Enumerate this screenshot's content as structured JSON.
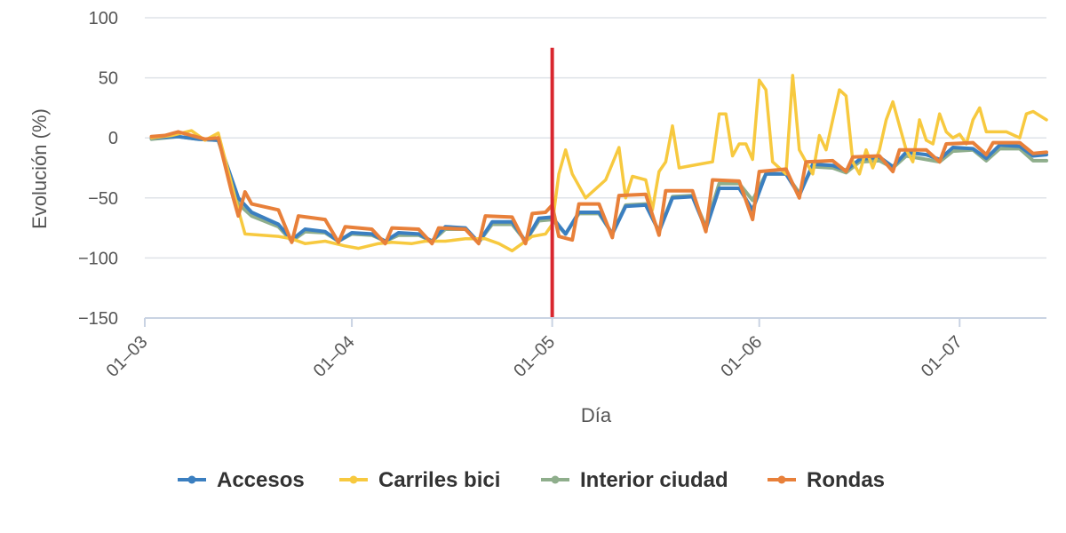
{
  "chart_data": {
    "type": "line",
    "title": "",
    "xlabel": "Día",
    "ylabel": "Evolución (%)",
    "ylim": [
      -150,
      100
    ],
    "yticks": [
      100,
      50,
      0,
      -50,
      -100,
      -150
    ],
    "ytick_labels": [
      "100",
      "50",
      "0",
      "−50",
      "−100",
      "−150"
    ],
    "xlim": [
      "2020-03-01",
      "2020-07-14"
    ],
    "xticks": [
      "2020-03-01",
      "2020-04-01",
      "2020-05-01",
      "2020-06-01",
      "2020-07-01"
    ],
    "xtick_labels": [
      "01–03",
      "01–04",
      "01–05",
      "01–06",
      "01–07"
    ],
    "grid": "horizontal",
    "legend_position": "bottom",
    "marker_line": {
      "x": "2020-05-01",
      "y_from": -150,
      "y_to": 75,
      "color": "#d9272e"
    },
    "series": [
      {
        "name": "Accesos",
        "color": "#3b7fc0",
        "points": [
          [
            "2020-03-02",
            0
          ],
          [
            "2020-03-06",
            1
          ],
          [
            "2020-03-09",
            -1
          ],
          [
            "2020-03-12",
            -2
          ],
          [
            "2020-03-15",
            -50
          ],
          [
            "2020-03-17",
            -62
          ],
          [
            "2020-03-21",
            -72
          ],
          [
            "2020-03-23",
            -85
          ],
          [
            "2020-03-25",
            -76
          ],
          [
            "2020-03-28",
            -78
          ],
          [
            "2020-03-30",
            -86
          ],
          [
            "2020-04-01",
            -79
          ],
          [
            "2020-04-04",
            -80
          ],
          [
            "2020-04-06",
            -86
          ],
          [
            "2020-04-08",
            -79
          ],
          [
            "2020-04-11",
            -80
          ],
          [
            "2020-04-13",
            -86
          ],
          [
            "2020-04-15",
            -74
          ],
          [
            "2020-04-18",
            -75
          ],
          [
            "2020-04-20",
            -87
          ],
          [
            "2020-04-22",
            -70
          ],
          [
            "2020-04-25",
            -70
          ],
          [
            "2020-04-27",
            -86
          ],
          [
            "2020-04-29",
            -67
          ],
          [
            "2020-05-01",
            -66
          ],
          [
            "2020-05-03",
            -80
          ],
          [
            "2020-05-05",
            -62
          ],
          [
            "2020-05-08",
            -62
          ],
          [
            "2020-05-10",
            -80
          ],
          [
            "2020-05-12",
            -57
          ],
          [
            "2020-05-15",
            -56
          ],
          [
            "2020-05-17",
            -78
          ],
          [
            "2020-05-19",
            -50
          ],
          [
            "2020-05-22",
            -49
          ],
          [
            "2020-05-24",
            -76
          ],
          [
            "2020-05-26",
            -42
          ],
          [
            "2020-05-29",
            -42
          ],
          [
            "2020-05-31",
            -60
          ],
          [
            "2020-06-02",
            -30
          ],
          [
            "2020-06-05",
            -30
          ],
          [
            "2020-06-07",
            -48
          ],
          [
            "2020-06-09",
            -22
          ],
          [
            "2020-06-12",
            -23
          ],
          [
            "2020-06-14",
            -27
          ],
          [
            "2020-06-16",
            -18
          ],
          [
            "2020-06-19",
            -16
          ],
          [
            "2020-06-21",
            -24
          ],
          [
            "2020-06-23",
            -12
          ],
          [
            "2020-06-26",
            -14
          ],
          [
            "2020-06-28",
            -18
          ],
          [
            "2020-06-30",
            -8
          ],
          [
            "2020-07-03",
            -9
          ],
          [
            "2020-07-05",
            -17
          ],
          [
            "2020-07-07",
            -6
          ],
          [
            "2020-07-10",
            -7
          ],
          [
            "2020-07-12",
            -15
          ],
          [
            "2020-07-14",
            -14
          ]
        ]
      },
      {
        "name": "Carriles bici",
        "color": "#f7c93f",
        "points": [
          [
            "2020-03-02",
            0
          ],
          [
            "2020-03-05",
            2
          ],
          [
            "2020-03-08",
            6
          ],
          [
            "2020-03-10",
            -2
          ],
          [
            "2020-03-12",
            4
          ],
          [
            "2020-03-15",
            -60
          ],
          [
            "2020-03-16",
            -80
          ],
          [
            "2020-03-21",
            -82
          ],
          [
            "2020-03-23",
            -84
          ],
          [
            "2020-03-25",
            -88
          ],
          [
            "2020-03-28",
            -86
          ],
          [
            "2020-03-31",
            -90
          ],
          [
            "2020-04-02",
            -92
          ],
          [
            "2020-04-05",
            -88
          ],
          [
            "2020-04-07",
            -87
          ],
          [
            "2020-04-10",
            -88
          ],
          [
            "2020-04-12",
            -86
          ],
          [
            "2020-04-15",
            -86
          ],
          [
            "2020-04-18",
            -84
          ],
          [
            "2020-04-21",
            -84
          ],
          [
            "2020-04-23",
            -88
          ],
          [
            "2020-04-25",
            -94
          ],
          [
            "2020-04-28",
            -82
          ],
          [
            "2020-04-30",
            -80
          ],
          [
            "2020-05-01",
            -72
          ],
          [
            "2020-05-02",
            -30
          ],
          [
            "2020-05-03",
            -10
          ],
          [
            "2020-05-04",
            -30
          ],
          [
            "2020-05-06",
            -50
          ],
          [
            "2020-05-09",
            -35
          ],
          [
            "2020-05-11",
            -8
          ],
          [
            "2020-05-12",
            -50
          ],
          [
            "2020-05-13",
            -32
          ],
          [
            "2020-05-15",
            -35
          ],
          [
            "2020-05-16",
            -60
          ],
          [
            "2020-05-17",
            -28
          ],
          [
            "2020-05-18",
            -20
          ],
          [
            "2020-05-19",
            10
          ],
          [
            "2020-05-20",
            -25
          ],
          [
            "2020-05-23",
            -22
          ],
          [
            "2020-05-25",
            -20
          ],
          [
            "2020-05-26",
            20
          ],
          [
            "2020-05-27",
            20
          ],
          [
            "2020-05-28",
            -15
          ],
          [
            "2020-05-29",
            -5
          ],
          [
            "2020-05-30",
            -5
          ],
          [
            "2020-05-31",
            -18
          ],
          [
            "2020-06-01",
            48
          ],
          [
            "2020-06-02",
            40
          ],
          [
            "2020-06-03",
            -20
          ],
          [
            "2020-06-05",
            -30
          ],
          [
            "2020-06-06",
            52
          ],
          [
            "2020-06-07",
            -10
          ],
          [
            "2020-06-09",
            -30
          ],
          [
            "2020-06-10",
            2
          ],
          [
            "2020-06-11",
            -10
          ],
          [
            "2020-06-12",
            15
          ],
          [
            "2020-06-13",
            40
          ],
          [
            "2020-06-14",
            35
          ],
          [
            "2020-06-15",
            -20
          ],
          [
            "2020-06-16",
            -30
          ],
          [
            "2020-06-17",
            -10
          ],
          [
            "2020-06-18",
            -25
          ],
          [
            "2020-06-19",
            -10
          ],
          [
            "2020-06-20",
            15
          ],
          [
            "2020-06-21",
            30
          ],
          [
            "2020-06-22",
            10
          ],
          [
            "2020-06-23",
            -10
          ],
          [
            "2020-06-24",
            -20
          ],
          [
            "2020-06-25",
            15
          ],
          [
            "2020-06-26",
            -2
          ],
          [
            "2020-06-27",
            -5
          ],
          [
            "2020-06-28",
            20
          ],
          [
            "2020-06-29",
            5
          ],
          [
            "2020-06-30",
            0
          ],
          [
            "2020-07-01",
            3
          ],
          [
            "2020-07-02",
            -5
          ],
          [
            "2020-07-03",
            15
          ],
          [
            "2020-07-04",
            25
          ],
          [
            "2020-07-05",
            5
          ],
          [
            "2020-07-07",
            5
          ],
          [
            "2020-07-08",
            5
          ],
          [
            "2020-07-10",
            0
          ],
          [
            "2020-07-11",
            20
          ],
          [
            "2020-07-12",
            22
          ],
          [
            "2020-07-14",
            15
          ]
        ]
      },
      {
        "name": "Interior ciudad",
        "color": "#8fae8c",
        "points": [
          [
            "2020-03-02",
            -1
          ],
          [
            "2020-03-06",
            1
          ],
          [
            "2020-03-09",
            -1
          ],
          [
            "2020-03-12",
            -2
          ],
          [
            "2020-03-15",
            -55
          ],
          [
            "2020-03-17",
            -65
          ],
          [
            "2020-03-21",
            -74
          ],
          [
            "2020-03-23",
            -86
          ],
          [
            "2020-03-25",
            -78
          ],
          [
            "2020-03-28",
            -79
          ],
          [
            "2020-03-30",
            -86
          ],
          [
            "2020-04-01",
            -80
          ],
          [
            "2020-04-04",
            -81
          ],
          [
            "2020-04-06",
            -86
          ],
          [
            "2020-04-08",
            -81
          ],
          [
            "2020-04-11",
            -81
          ],
          [
            "2020-04-13",
            -86
          ],
          [
            "2020-04-15",
            -76
          ],
          [
            "2020-04-18",
            -76
          ],
          [
            "2020-04-20",
            -87
          ],
          [
            "2020-04-22",
            -72
          ],
          [
            "2020-04-25",
            -72
          ],
          [
            "2020-04-27",
            -86
          ],
          [
            "2020-04-29",
            -69
          ],
          [
            "2020-05-01",
            -68
          ],
          [
            "2020-05-03",
            -80
          ],
          [
            "2020-05-05",
            -63
          ],
          [
            "2020-05-08",
            -63
          ],
          [
            "2020-05-10",
            -80
          ],
          [
            "2020-05-12",
            -56
          ],
          [
            "2020-05-15",
            -55
          ],
          [
            "2020-05-17",
            -78
          ],
          [
            "2020-05-19",
            -49
          ],
          [
            "2020-05-22",
            -48
          ],
          [
            "2020-05-24",
            -74
          ],
          [
            "2020-05-26",
            -38
          ],
          [
            "2020-05-29",
            -38
          ],
          [
            "2020-05-31",
            -52
          ],
          [
            "2020-06-02",
            -30
          ],
          [
            "2020-06-05",
            -30
          ],
          [
            "2020-06-07",
            -46
          ],
          [
            "2020-06-09",
            -24
          ],
          [
            "2020-06-12",
            -25
          ],
          [
            "2020-06-14",
            -29
          ],
          [
            "2020-06-16",
            -20
          ],
          [
            "2020-06-19",
            -19
          ],
          [
            "2020-06-21",
            -25
          ],
          [
            "2020-06-23",
            -15
          ],
          [
            "2020-06-26",
            -18
          ],
          [
            "2020-06-28",
            -20
          ],
          [
            "2020-06-30",
            -11
          ],
          [
            "2020-07-03",
            -10
          ],
          [
            "2020-07-05",
            -19
          ],
          [
            "2020-07-07",
            -9
          ],
          [
            "2020-07-10",
            -9
          ],
          [
            "2020-07-12",
            -19
          ],
          [
            "2020-07-14",
            -19
          ]
        ]
      },
      {
        "name": "Rondas",
        "color": "#e8803a",
        "points": [
          [
            "2020-03-02",
            1
          ],
          [
            "2020-03-04",
            2
          ],
          [
            "2020-03-06",
            5
          ],
          [
            "2020-03-08",
            2
          ],
          [
            "2020-03-10",
            -1
          ],
          [
            "2020-03-12",
            0
          ],
          [
            "2020-03-14",
            -45
          ],
          [
            "2020-03-15",
            -65
          ],
          [
            "2020-03-16",
            -45
          ],
          [
            "2020-03-17",
            -55
          ],
          [
            "2020-03-21",
            -60
          ],
          [
            "2020-03-23",
            -87
          ],
          [
            "2020-03-24",
            -65
          ],
          [
            "2020-03-28",
            -68
          ],
          [
            "2020-03-30",
            -87
          ],
          [
            "2020-03-31",
            -74
          ],
          [
            "2020-04-04",
            -76
          ],
          [
            "2020-04-06",
            -88
          ],
          [
            "2020-04-07",
            -75
          ],
          [
            "2020-04-11",
            -76
          ],
          [
            "2020-04-13",
            -88
          ],
          [
            "2020-04-14",
            -75
          ],
          [
            "2020-04-18",
            -76
          ],
          [
            "2020-04-20",
            -88
          ],
          [
            "2020-04-21",
            -65
          ],
          [
            "2020-04-25",
            -66
          ],
          [
            "2020-04-27",
            -88
          ],
          [
            "2020-04-28",
            -63
          ],
          [
            "2020-04-30",
            -62
          ],
          [
            "2020-05-01",
            -56
          ],
          [
            "2020-05-02",
            -82
          ],
          [
            "2020-05-04",
            -85
          ],
          [
            "2020-05-05",
            -55
          ],
          [
            "2020-05-08",
            -55
          ],
          [
            "2020-05-10",
            -83
          ],
          [
            "2020-05-11",
            -48
          ],
          [
            "2020-05-15",
            -47
          ],
          [
            "2020-05-17",
            -81
          ],
          [
            "2020-05-18",
            -44
          ],
          [
            "2020-05-22",
            -44
          ],
          [
            "2020-05-24",
            -78
          ],
          [
            "2020-05-25",
            -35
          ],
          [
            "2020-05-29",
            -36
          ],
          [
            "2020-05-31",
            -68
          ],
          [
            "2020-06-01",
            -28
          ],
          [
            "2020-06-05",
            -26
          ],
          [
            "2020-06-07",
            -50
          ],
          [
            "2020-06-08",
            -20
          ],
          [
            "2020-06-12",
            -19
          ],
          [
            "2020-06-14",
            -28
          ],
          [
            "2020-06-15",
            -16
          ],
          [
            "2020-06-19",
            -15
          ],
          [
            "2020-06-21",
            -28
          ],
          [
            "2020-06-22",
            -10
          ],
          [
            "2020-06-26",
            -10
          ],
          [
            "2020-06-28",
            -20
          ],
          [
            "2020-06-29",
            -5
          ],
          [
            "2020-07-03",
            -4
          ],
          [
            "2020-07-05",
            -14
          ],
          [
            "2020-07-06",
            -4
          ],
          [
            "2020-07-10",
            -4
          ],
          [
            "2020-07-12",
            -13
          ],
          [
            "2020-07-14",
            -12
          ]
        ]
      }
    ]
  }
}
